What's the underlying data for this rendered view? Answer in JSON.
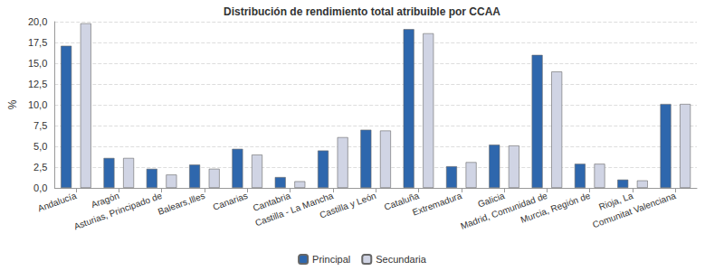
{
  "chart_data": {
    "type": "bar",
    "title": "Distribución de rendimiento total atribuible por CCAA",
    "y_label": "%",
    "categories": [
      "Andalucía",
      "Aragón",
      "Asturias, Principado de",
      "Balears,Illes",
      "Canarias",
      "Cantabria",
      "Castilla - La Mancha",
      "Castilla y León",
      "Cataluña",
      "Extremadura",
      "Galicia",
      "Madrid, Comunidad de",
      "Murcia, Región de",
      "Rioja, La",
      "Comunitat Valenciana"
    ],
    "series": [
      {
        "name": "Principal",
        "color": "#2e67ad",
        "values": [
          17.1,
          3.6,
          2.3,
          2.8,
          4.7,
          1.3,
          4.5,
          7.0,
          19.1,
          2.6,
          5.2,
          16.0,
          2.9,
          1.0,
          10.1
        ]
      },
      {
        "name": "Secundaria",
        "color": "#d0d4e4",
        "values": [
          19.8,
          3.6,
          1.6,
          2.3,
          4.0,
          0.8,
          6.1,
          6.9,
          18.6,
          3.1,
          5.1,
          14.0,
          2.9,
          0.9,
          10.1
        ]
      }
    ],
    "ylim": [
      0,
      20
    ],
    "yticks": [
      {
        "value": 0,
        "label": "0,0"
      },
      {
        "value": 2.5,
        "label": "2,5"
      },
      {
        "value": 5,
        "label": "5,0"
      },
      {
        "value": 7.5,
        "label": "7,5"
      },
      {
        "value": 10,
        "label": "10,0"
      },
      {
        "value": 12.5,
        "label": "12,5"
      },
      {
        "value": 15,
        "label": "15,0"
      },
      {
        "value": 17.5,
        "label": "17,5"
      },
      {
        "value": 20,
        "label": "20,0"
      }
    ],
    "grid": true,
    "legend": "bottom"
  }
}
